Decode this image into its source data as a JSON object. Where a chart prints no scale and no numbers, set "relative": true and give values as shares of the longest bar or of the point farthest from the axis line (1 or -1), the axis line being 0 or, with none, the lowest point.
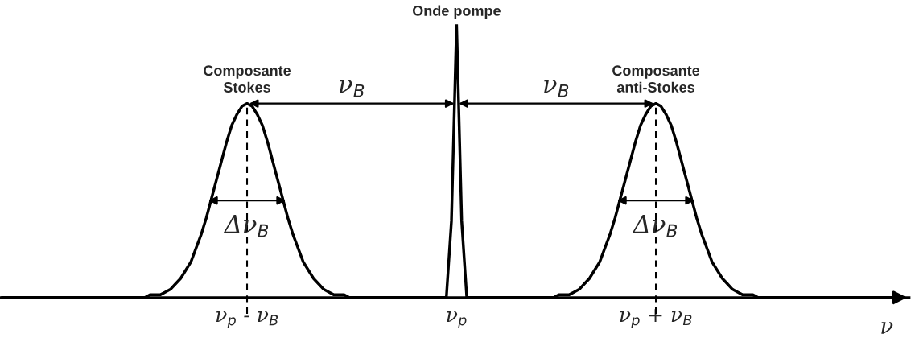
{
  "chart_data": {
    "type": "line",
    "relative": true,
    "tick_labels": "x",
    "xlabel": "ν",
    "categories": [
      null,
      null,
      null,
      null,
      null,
      null,
      null,
      null,
      null,
      null,
      null,
      null,
      null,
      null,
      null,
      null,
      null,
      null,
      null,
      null,
      null,
      null,
      null,
      null,
      null,
      null,
      null,
      null,
      null,
      null,
      null,
      null,
      null,
      null,
      null,
      null,
      null,
      null,
      null,
      null,
      null,
      null,
      null,
      null,
      null,
      null,
      null,
      null,
      "ν$_{p}$ - ν$_{B}$",
      null,
      null,
      null,
      null,
      null,
      null,
      null,
      null,
      null,
      null,
      null,
      null,
      null,
      null,
      null,
      null,
      null,
      null,
      null,
      null,
      null,
      null,
      null,
      null,
      null,
      null,
      null,
      null,
      null,
      null,
      null,
      null,
      null,
      null,
      null,
      null,
      null,
      null,
      null,
      null,
      "ν$_{p}$",
      null,
      null,
      null,
      null,
      null,
      null,
      null,
      null,
      null,
      null,
      null,
      null,
      null,
      null,
      null,
      null,
      null,
      null,
      null,
      null,
      null,
      null,
      null,
      null,
      null,
      null,
      null,
      null,
      null,
      null,
      null,
      null,
      null,
      null,
      null,
      null,
      null,
      null,
      "ν$_{p}$ + ν$_{B}$",
      null,
      null,
      null,
      null,
      null,
      null,
      null,
      null,
      null,
      null,
      null,
      null,
      null,
      null,
      null,
      null,
      null,
      null,
      null,
      null,
      null,
      null,
      null,
      null,
      null,
      null,
      null,
      null,
      null,
      null,
      null,
      null,
      null,
      null,
      null,
      null,
      null,
      null,
      null,
      null,
      null,
      null,
      null,
      null,
      null,
      null,
      null,
      null
    ],
    "series": [
      {
        "color": "#000000",
        "values": [
          0,
          0,
          0,
          0,
          0,
          0,
          0,
          0,
          0,
          0,
          0,
          0,
          0,
          0,
          0,
          0,
          0,
          0,
          0,
          0,
          0,
          0,
          0,
          0,
          0,
          0,
          0,
          0,
          0,
          0.01,
          0.01,
          0.01,
          0.02,
          0.03,
          0.05,
          0.07,
          0.1,
          0.13,
          0.18,
          0.23,
          0.29,
          0.36,
          0.43,
          0.5,
          0.57,
          0.63,
          0.67,
          0.7,
          0.71,
          0.7,
          0.67,
          0.63,
          0.57,
          0.5,
          0.43,
          0.36,
          0.29,
          0.23,
          0.18,
          0.13,
          0.1,
          0.07,
          0.05,
          0.03,
          0.02,
          0.01,
          0.01,
          0.01,
          0,
          0,
          0,
          0,
          0,
          0,
          0,
          0,
          0,
          0,
          0,
          0,
          0,
          0,
          0,
          0,
          0,
          0,
          0,
          0,
          0.28,
          1,
          0.28,
          0,
          0,
          0,
          0,
          0,
          0,
          0,
          0,
          0,
          0,
          0,
          0,
          0,
          0,
          0,
          0,
          0,
          0,
          0.01,
          0.01,
          0.01,
          0.02,
          0.03,
          0.05,
          0.07,
          0.1,
          0.13,
          0.18,
          0.23,
          0.29,
          0.36,
          0.43,
          0.5,
          0.57,
          0.63,
          0.67,
          0.7,
          0.71,
          0.7,
          0.67,
          0.63,
          0.57,
          0.5,
          0.43,
          0.36,
          0.29,
          0.23,
          0.18,
          0.13,
          0.1,
          0.07,
          0.05,
          0.03,
          0.02,
          0.01,
          0.01,
          0.01,
          0,
          0,
          0,
          0,
          0,
          0,
          0,
          0,
          0,
          0,
          0,
          0,
          0,
          0,
          0,
          0,
          0,
          0,
          0,
          0,
          0,
          0,
          0,
          0,
          0,
          0,
          0,
          0,
          0
        ]
      }
    ],
    "annotations": [
      "Composante\nStokes",
      "Onde pompe",
      "Composante\nanti-Stokes",
      "ν$_{B}$",
      "ν$_{B}$",
      "Δν$_{B}$",
      "Δν$_{B}$"
    ]
  }
}
